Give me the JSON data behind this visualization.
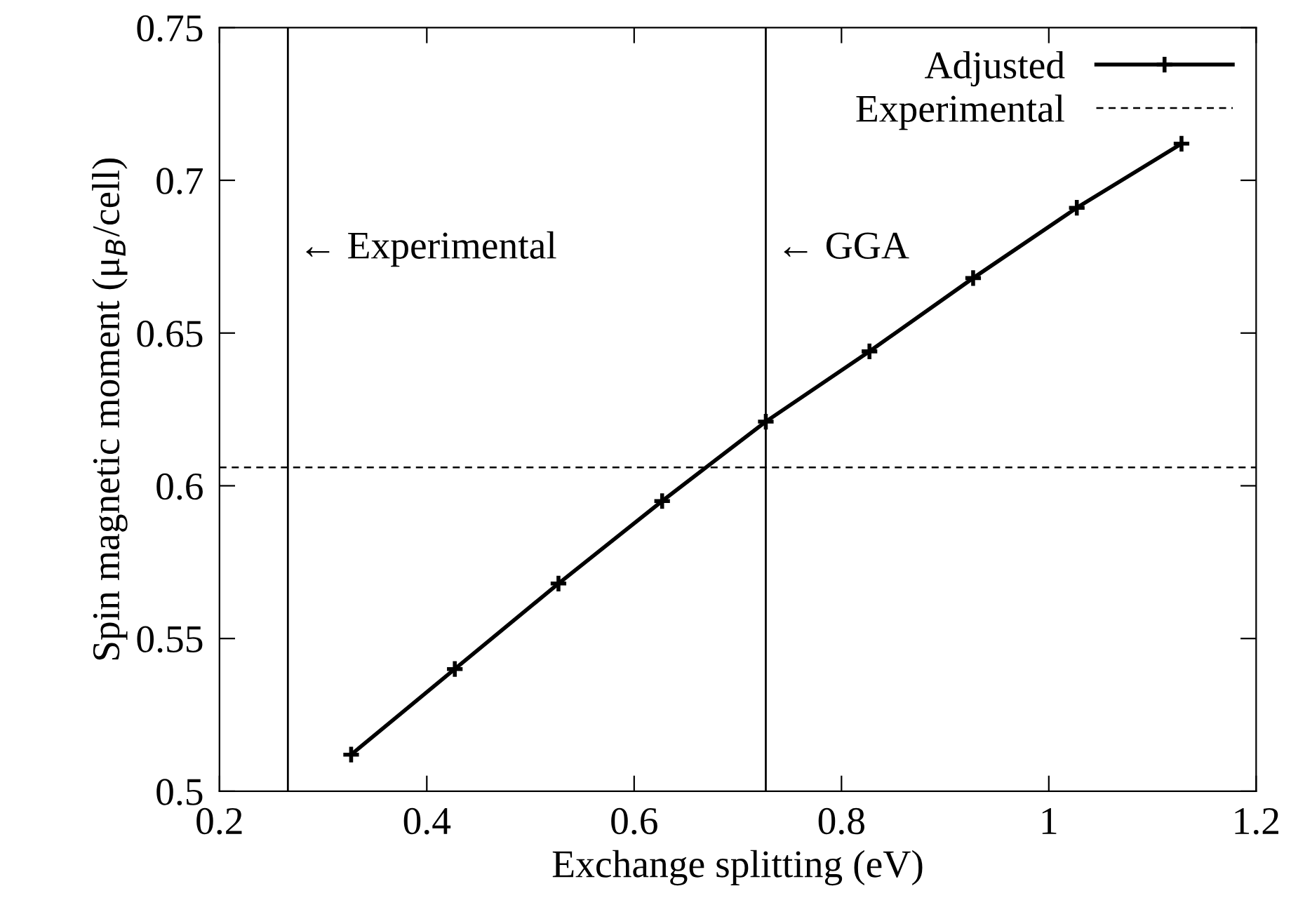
{
  "chart_data": {
    "type": "line",
    "xlabel": "Exchange splitting (eV)",
    "ylabel": "Spin magnetic moment (μ$_{B}$/cell)",
    "x": [
      0.327,
      0.427,
      0.527,
      0.627,
      0.727,
      0.827,
      0.927,
      1.027,
      1.128
    ],
    "series": [
      {
        "name": "Adjusted",
        "color": "#000000",
        "values": [
          0.512,
          0.54,
          0.568,
          0.595,
          0.621,
          0.644,
          0.668,
          0.691,
          0.712
        ]
      }
    ],
    "marker": "cross",
    "line_style": "solid",
    "xlim": [
      0.2,
      1.2
    ],
    "xticks": [
      0.2,
      0.4,
      0.6,
      0.8,
      {
        "value": 1.0,
        "label": "1"
      },
      1.2
    ],
    "ylim": [
      0.5,
      0.75
    ],
    "yticks": [
      0.5,
      0.55,
      0.6,
      0.65,
      0.7,
      0.75
    ],
    "ref_lines": [
      {
        "axis": "y",
        "value": 0.606,
        "label": "Experimental",
        "color": "#000000",
        "line_style": "dashed"
      },
      {
        "axis": "x",
        "value": 0.266,
        "label": "← Experimental",
        "color": "#000000",
        "line_style": "solid"
      },
      {
        "axis": "x",
        "value": 0.727,
        "label": "← GGA",
        "color": "#000000",
        "line_style": "solid"
      }
    ],
    "grid": false,
    "legend": "top right"
  }
}
